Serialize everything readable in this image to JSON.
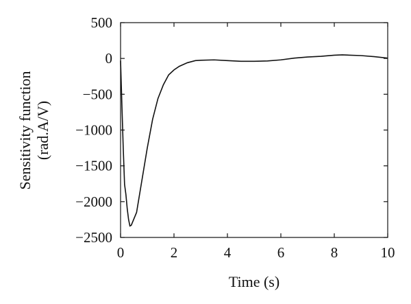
{
  "chart_data": {
    "type": "line",
    "title": "",
    "xlabel": "Time (s)",
    "ylabel_lines": [
      "Sensitivity function",
      "(rad.A/V)"
    ],
    "xlim": [
      0,
      10
    ],
    "ylim": [
      -2500,
      500
    ],
    "xticks": [
      0,
      2,
      4,
      6,
      8,
      10
    ],
    "yticks": [
      500,
      0,
      -500,
      -1000,
      -1500,
      -2000,
      -2500
    ],
    "grid": false,
    "series": [
      {
        "x": [
          0,
          0.05,
          0.1,
          0.15,
          0.2,
          0.25,
          0.3,
          0.35,
          0.4,
          0.6,
          0.8,
          1.0,
          1.2,
          1.4,
          1.6,
          1.8,
          2.0,
          2.2,
          2.5,
          2.8,
          3.0,
          3.5,
          4.0,
          4.5,
          5.0,
          5.5,
          6.0,
          6.5,
          7.0,
          7.5,
          8.0,
          8.3,
          9.0,
          9.5,
          10.0
        ],
        "y": [
          -30,
          -650,
          -1250,
          -1760,
          -1900,
          -2100,
          -2250,
          -2340,
          -2330,
          -2150,
          -1700,
          -1250,
          -850,
          -560,
          -370,
          -230,
          -160,
          -110,
          -60,
          -30,
          -25,
          -20,
          -30,
          -40,
          -40,
          -35,
          -20,
          5,
          20,
          30,
          45,
          50,
          40,
          25,
          5
        ]
      }
    ]
  }
}
